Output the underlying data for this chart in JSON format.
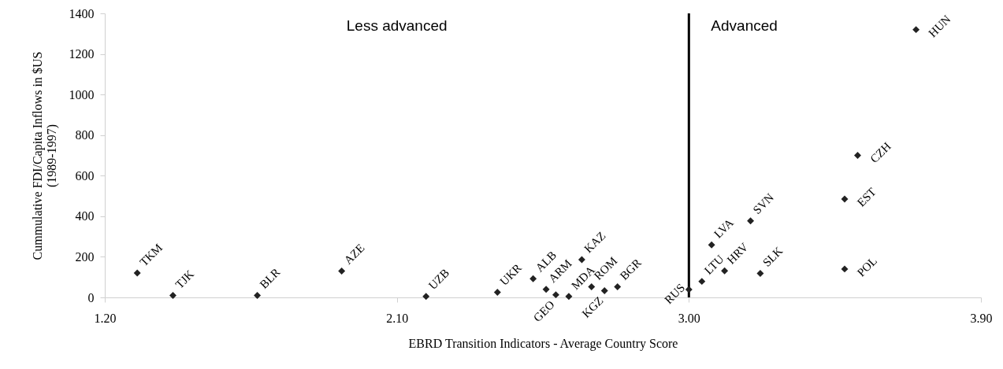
{
  "chart_data": {
    "type": "scatter",
    "xlabel": "EBRD Transition Indicators - Average Country Score",
    "ylabel": "Cummulative FDI/Capita Inflows in $US\n(1989-1997)",
    "x": [
      1.3,
      1.41,
      1.67,
      1.93,
      2.19,
      2.41,
      2.52,
      2.56,
      2.59,
      2.63,
      2.67,
      2.7,
      2.74,
      2.78,
      3.0,
      3.04,
      3.07,
      3.11,
      3.19,
      3.22,
      3.48,
      3.48,
      3.52,
      3.7
    ],
    "series": [
      {
        "color": "#222222",
        "values": [
          120,
          10,
          10,
          130,
          5,
          25,
          92,
          40,
          13,
          5,
          186,
          52,
          33,
          52,
          39,
          79,
          259,
          131,
          377,
          118,
          140,
          485,
          700,
          1320
        ]
      }
    ],
    "marker": "diamond",
    "xlim": [
      1.2,
      3.9
    ],
    "xticks": [
      {
        "value": 1.2,
        "label": "1.20"
      },
      {
        "value": 2.1,
        "label": "2.10"
      },
      {
        "value": 3.0,
        "label": "3.00"
      },
      {
        "value": 3.9,
        "label": "3.90"
      }
    ],
    "ylim": [
      0,
      1400
    ],
    "yticks": [
      0,
      200,
      400,
      600,
      800,
      1000,
      1200,
      1400
    ],
    "grid": false,
    "ref_lines": [
      {
        "axis": "x",
        "value": 3.0,
        "color": "#000000"
      }
    ],
    "annotations": [
      "Less advanced",
      "Advanced",
      {
        "text": "TKM",
        "x": 1.3,
        "y": 120
      },
      {
        "text": "TJK",
        "x": 1.41,
        "y": 10
      },
      {
        "text": "BLR",
        "x": 1.67,
        "y": 10
      },
      {
        "text": "AZE",
        "x": 1.93,
        "y": 130
      },
      {
        "text": "UZB",
        "x": 2.19,
        "y": 5
      },
      {
        "text": "UKR",
        "x": 2.41,
        "y": 25
      },
      {
        "text": "ALB",
        "x": 2.52,
        "y": 92
      },
      {
        "text": "ARM",
        "x": 2.56,
        "y": 40
      },
      {
        "text": "GEO",
        "x": 2.59,
        "y": 13
      },
      {
        "text": "MDA",
        "x": 2.63,
        "y": 5
      },
      {
        "text": "KAZ",
        "x": 2.67,
        "y": 186
      },
      {
        "text": "ROM",
        "x": 2.7,
        "y": 52
      },
      {
        "text": "KGZ",
        "x": 2.74,
        "y": 33
      },
      {
        "text": "BGR",
        "x": 2.78,
        "y": 52
      },
      {
        "text": "RUS",
        "x": 3.0,
        "y": 39
      },
      {
        "text": "LTU",
        "x": 3.04,
        "y": 79
      },
      {
        "text": "LVA",
        "x": 3.07,
        "y": 259
      },
      {
        "text": "HRV",
        "x": 3.11,
        "y": 131
      },
      {
        "text": "SVN",
        "x": 3.19,
        "y": 377
      },
      {
        "text": "SLK",
        "x": 3.22,
        "y": 118
      },
      {
        "text": "POL",
        "x": 3.48,
        "y": 140
      },
      {
        "text": "EST",
        "x": 3.48,
        "y": 485
      },
      {
        "text": "CZH",
        "x": 3.52,
        "y": 700
      },
      {
        "text": "HUN",
        "x": 3.7,
        "y": 1320
      }
    ]
  }
}
